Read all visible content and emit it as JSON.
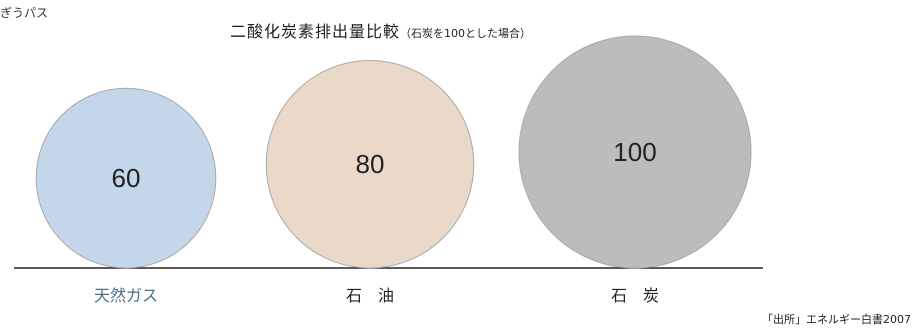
{
  "corner_text": "ぎうパス",
  "chart_data": {
    "type": "bubble",
    "title": "二酸化炭素排出量比較",
    "subtitle": "（石炭を100とした場合）",
    "categories": [
      "天然ガス",
      "石　油",
      "石　炭"
    ],
    "values": [
      60,
      80,
      100
    ],
    "colors": [
      "#c3d6ea",
      "#ead9c8",
      "#bcbcbc"
    ],
    "label_colors": [
      "#4a6f8a",
      "#222222",
      "#222222"
    ],
    "baseline": true,
    "legend": "none"
  },
  "source": "「出所」エネルギー白書2007"
}
